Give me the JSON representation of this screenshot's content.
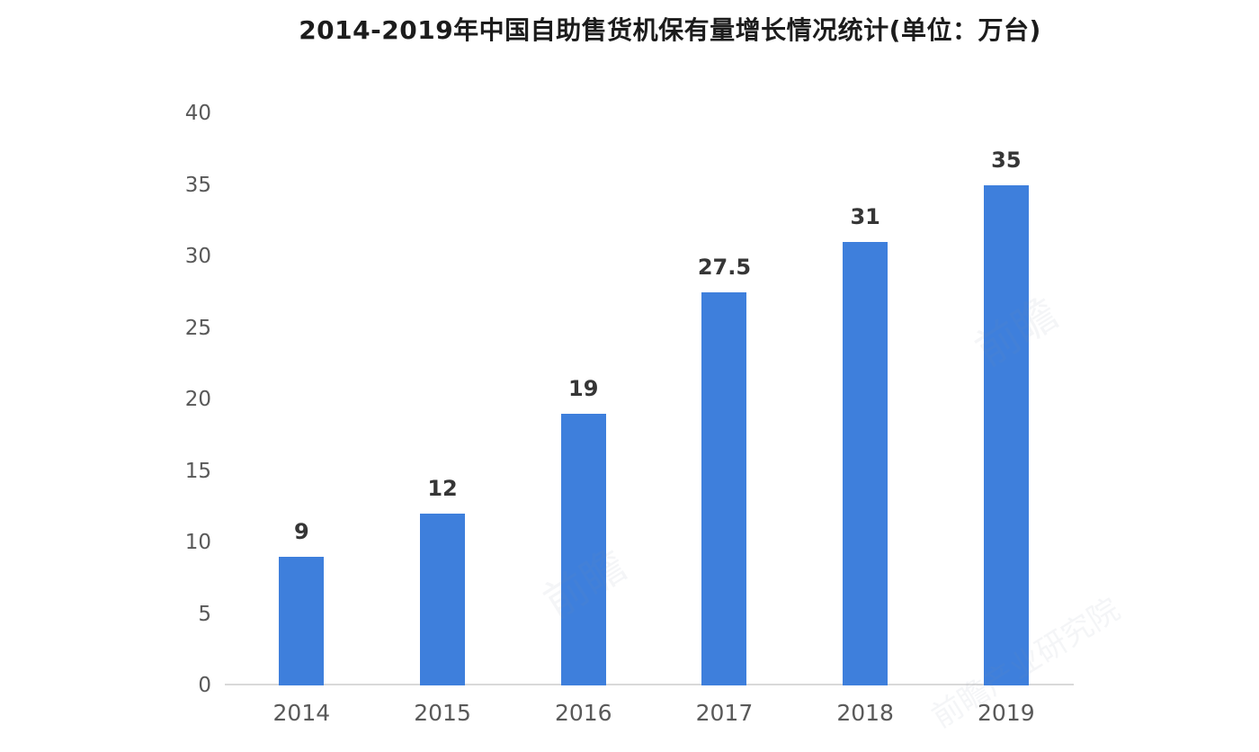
{
  "chart_data": {
    "type": "bar",
    "title": "2014-2019年中国自助售货机保有量增长情况统计(单位：万台)",
    "categories": [
      "2014",
      "2015",
      "2016",
      "2017",
      "2018",
      "2019"
    ],
    "values": [
      9,
      12,
      19,
      27.5,
      31,
      35
    ],
    "data_labels": [
      "9",
      "12",
      "19",
      "27.5",
      "31",
      "35"
    ],
    "xlabel": "",
    "ylabel": "",
    "ylim": [
      0,
      40
    ],
    "yticks": [
      0,
      5,
      10,
      15,
      20,
      25,
      30,
      35,
      40
    ],
    "grid": false,
    "legend": "none",
    "bar_color": "#3e7fdc",
    "axis_line_color": "#d9d9d9",
    "tick_label_color": "#595959",
    "data_label_color": "#363636",
    "title_color": "#1c1c1c"
  },
  "watermark": {
    "text_short": "前瞻",
    "text_long": "前瞻产业研究院"
  }
}
